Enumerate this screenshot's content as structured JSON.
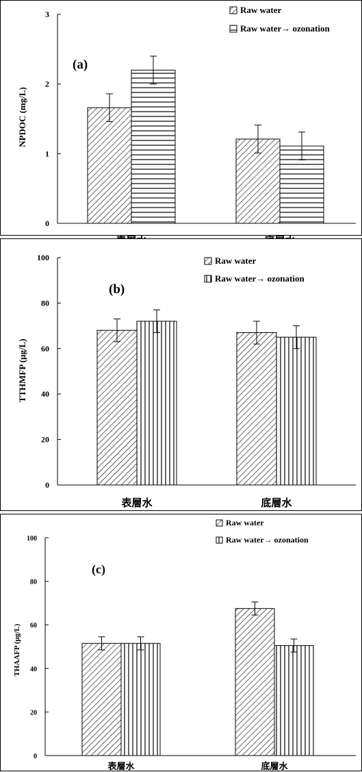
{
  "chart_data": [
    {
      "type": "bar",
      "panel_label": "(a)",
      "ylabel": "NPDOC (mg/L)",
      "categories": [
        "表層水",
        "底層水"
      ],
      "ylim": [
        0,
        3
      ],
      "yticks": [
        "0",
        "1",
        "2",
        "3"
      ],
      "series": [
        {
          "name": "Raw water",
          "pattern": "diag",
          "values": [
            1.66,
            1.21
          ],
          "errors": [
            0.2,
            0.2
          ]
        },
        {
          "name": "Raw water→ ozonation",
          "pattern": "horiz",
          "values": [
            2.2,
            1.11
          ],
          "errors": [
            0.2,
            0.2
          ]
        }
      ],
      "legend_position": "top-right"
    },
    {
      "type": "bar",
      "panel_label": "(b)",
      "ylabel": "TTHMFP (μg/L)",
      "categories": [
        "表層水",
        "底層水"
      ],
      "ylim": [
        0,
        100
      ],
      "yticks": [
        "0",
        "20",
        "40",
        "60",
        "80",
        "100"
      ],
      "series": [
        {
          "name": "Raw water",
          "pattern": "diag",
          "values": [
            68,
            67
          ],
          "errors": [
            5,
            5
          ]
        },
        {
          "name": "Raw water→ ozonation",
          "pattern": "vert",
          "values": [
            72,
            65
          ],
          "errors": [
            5,
            5
          ]
        }
      ],
      "legend_position": "top-right"
    },
    {
      "type": "bar",
      "panel_label": "(c)",
      "ylabel": "THAAFP (μg/L)",
      "categories": [
        "表層水",
        "底層水"
      ],
      "ylim": [
        0,
        100
      ],
      "yticks": [
        "0",
        "20",
        "40",
        "60",
        "80",
        "100"
      ],
      "series": [
        {
          "name": "Raw water",
          "pattern": "diag",
          "values": [
            51.5,
            67.5
          ],
          "errors": [
            3,
            3
          ]
        },
        {
          "name": "Raw water→ ozonation",
          "pattern": "vert",
          "values": [
            51.5,
            50.5
          ],
          "errors": [
            3,
            3
          ]
        }
      ],
      "legend_position": "top-right"
    }
  ]
}
